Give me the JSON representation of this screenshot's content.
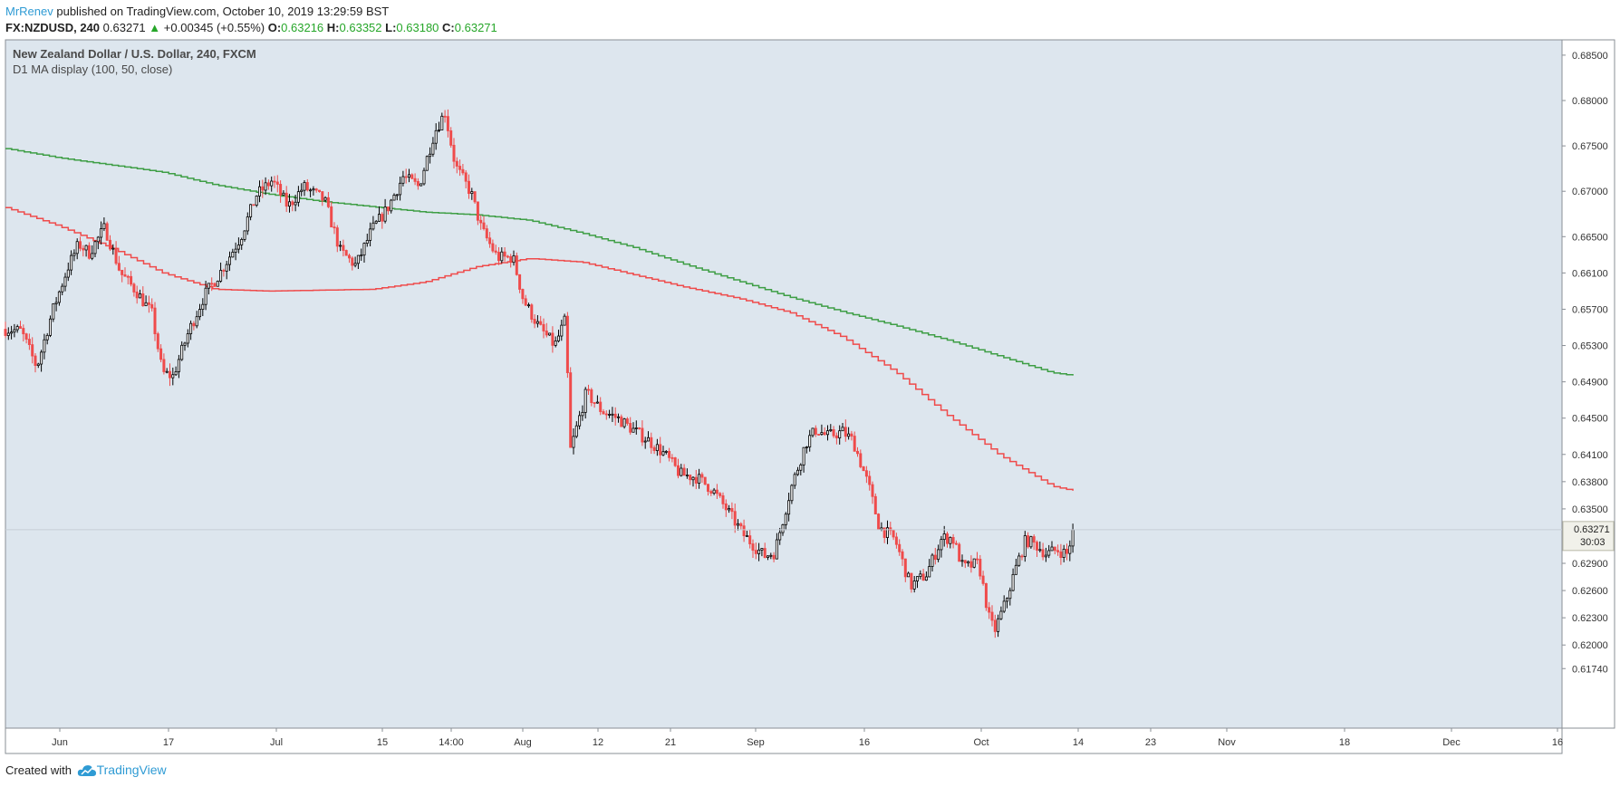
{
  "header": {
    "author": "MrRenev",
    "published_text": " published on TradingView.com, October 10, 2019 13:29:59 BST",
    "symbol": "FX:NZDUSD, 240",
    "last": "0.63271",
    "change": "+0.00345 (+0.55%)",
    "o_label": "O:",
    "o_value": "0.63216",
    "h_label": "H:",
    "h_value": "0.63352",
    "l_label": "L:",
    "l_value": "0.63180",
    "c_label": "C:",
    "c_value": "0.63271"
  },
  "legend": {
    "title": "New Zealand Dollar / U.S. Dollar, 240, FXCM",
    "indicator": "D1 MA display (100, 50, close)"
  },
  "colors": {
    "background": "#dde6ee",
    "up_candle_body": "#ffffff",
    "candle_wick": "#000000",
    "ma_red": "#ef4b4b",
    "ma_green": "#3e9e45",
    "price_tag_bg": "#f1f1ea",
    "brand": "#2f9bd4"
  },
  "price_tag": {
    "price": "0.63271",
    "countdown": "30:03"
  },
  "footer": {
    "created_with": "Created with",
    "brand": "TradingView"
  },
  "chart_data": {
    "type": "candlestick",
    "title": "New Zealand Dollar / U.S. Dollar, 240, FXCM",
    "y_ticks": [
      "0.68500",
      "0.68000",
      "0.67500",
      "0.67000",
      "0.66500",
      "0.66100",
      "0.65700",
      "0.65300",
      "0.64900",
      "0.64500",
      "0.64100",
      "0.63800",
      "0.63500",
      "0.62900",
      "0.62600",
      "0.62300",
      "0.62000",
      "0.61740"
    ],
    "x_ticks": [
      "Jun",
      "17",
      "Jul",
      "15",
      "14:00",
      "Aug",
      "12",
      "21",
      "Sep",
      "16",
      "Oct",
      "14",
      "23",
      "Nov",
      "18",
      "Dec",
      "16"
    ],
    "ylim": [
      0.615,
      0.6885
    ],
    "price_path": [
      [
        0.0,
        0.6548
      ],
      [
        1.5,
        0.6546
      ],
      [
        3.0,
        0.6506
      ],
      [
        4.5,
        0.6568
      ],
      [
        6.0,
        0.6617
      ],
      [
        7.0,
        0.6642
      ],
      [
        8.0,
        0.6632
      ],
      [
        9.5,
        0.666
      ],
      [
        11.0,
        0.661
      ],
      [
        12.5,
        0.659
      ],
      [
        14.0,
        0.6565
      ],
      [
        15.0,
        0.65
      ],
      [
        16.0,
        0.6496
      ],
      [
        17.5,
        0.6545
      ],
      [
        19.0,
        0.6585
      ],
      [
        20.5,
        0.661
      ],
      [
        22.5,
        0.665
      ],
      [
        24.0,
        0.6696
      ],
      [
        25.5,
        0.6712
      ],
      [
        27.0,
        0.6683
      ],
      [
        28.5,
        0.6705
      ],
      [
        30.5,
        0.669
      ],
      [
        32.0,
        0.6634
      ],
      [
        33.5,
        0.6618
      ],
      [
        35.0,
        0.6657
      ],
      [
        36.5,
        0.6681
      ],
      [
        38.0,
        0.6716
      ],
      [
        39.5,
        0.6705
      ],
      [
        41.0,
        0.6765
      ],
      [
        42.0,
        0.6787
      ],
      [
        43.0,
        0.6728
      ],
      [
        44.5,
        0.6698
      ],
      [
        45.5,
        0.6658
      ],
      [
        47.0,
        0.6627
      ],
      [
        48.5,
        0.6627
      ],
      [
        49.5,
        0.658
      ],
      [
        51.0,
        0.655
      ],
      [
        52.5,
        0.653
      ],
      [
        53.5,
        0.6558
      ],
      [
        54.0,
        0.6415
      ],
      [
        55.5,
        0.6478
      ],
      [
        57.0,
        0.6458
      ],
      [
        58.5,
        0.645
      ],
      [
        60.0,
        0.6437
      ],
      [
        61.5,
        0.6425
      ],
      [
        63.0,
        0.641
      ],
      [
        64.5,
        0.6388
      ],
      [
        66.0,
        0.6385
      ],
      [
        67.5,
        0.6372
      ],
      [
        69.0,
        0.6348
      ],
      [
        70.5,
        0.6322
      ],
      [
        72.5,
        0.6298
      ],
      [
        73.5,
        0.6302
      ],
      [
        75.0,
        0.637
      ],
      [
        76.5,
        0.6423
      ],
      [
        77.5,
        0.6438
      ],
      [
        78.5,
        0.643
      ],
      [
        80.0,
        0.6435
      ],
      [
        81.0,
        0.6425
      ],
      [
        82.5,
        0.6375
      ],
      [
        83.5,
        0.633
      ],
      [
        85.0,
        0.6316
      ],
      [
        86.5,
        0.6265
      ],
      [
        88.0,
        0.6278
      ],
      [
        89.5,
        0.6318
      ],
      [
        90.5,
        0.6318
      ],
      [
        91.5,
        0.6285
      ],
      [
        93.0,
        0.629
      ],
      [
        94.0,
        0.623
      ],
      [
        94.5,
        0.6215
      ],
      [
        95.5,
        0.6245
      ],
      [
        96.5,
        0.6283
      ],
      [
        97.5,
        0.6316
      ],
      [
        98.5,
        0.631
      ],
      [
        99.5,
        0.63
      ],
      [
        100.5,
        0.6305
      ],
      [
        101.5,
        0.63
      ],
      [
        102.0,
        0.6327
      ]
    ],
    "series": [
      {
        "color": "#ef4b4b",
        "x": [
          0,
          5,
          10,
          15,
          20,
          25,
          30,
          35,
          40,
          45,
          50,
          55,
          60,
          65,
          70,
          75,
          80,
          85,
          90,
          95,
          100,
          102
        ],
        "values": [
          0.6682,
          0.6662,
          0.6638,
          0.661,
          0.6592,
          0.659,
          0.6591,
          0.6592,
          0.66,
          0.6617,
          0.6626,
          0.6622,
          0.6608,
          0.6594,
          0.6582,
          0.6566,
          0.6539,
          0.6501,
          0.6453,
          0.6409,
          0.6375,
          0.637
        ]
      },
      {
        "color": "#3e9e45",
        "x": [
          0,
          5,
          10,
          15,
          20,
          25,
          30,
          35,
          40,
          45,
          50,
          55,
          60,
          65,
          70,
          75,
          80,
          85,
          90,
          95,
          100,
          102
        ],
        "values": [
          0.6747,
          0.6737,
          0.6729,
          0.6721,
          0.6707,
          0.6697,
          0.6689,
          0.6683,
          0.6677,
          0.6674,
          0.6668,
          0.6654,
          0.6638,
          0.6619,
          0.6601,
          0.6583,
          0.6567,
          0.6552,
          0.6536,
          0.6518,
          0.65,
          0.6497
        ]
      }
    ]
  }
}
